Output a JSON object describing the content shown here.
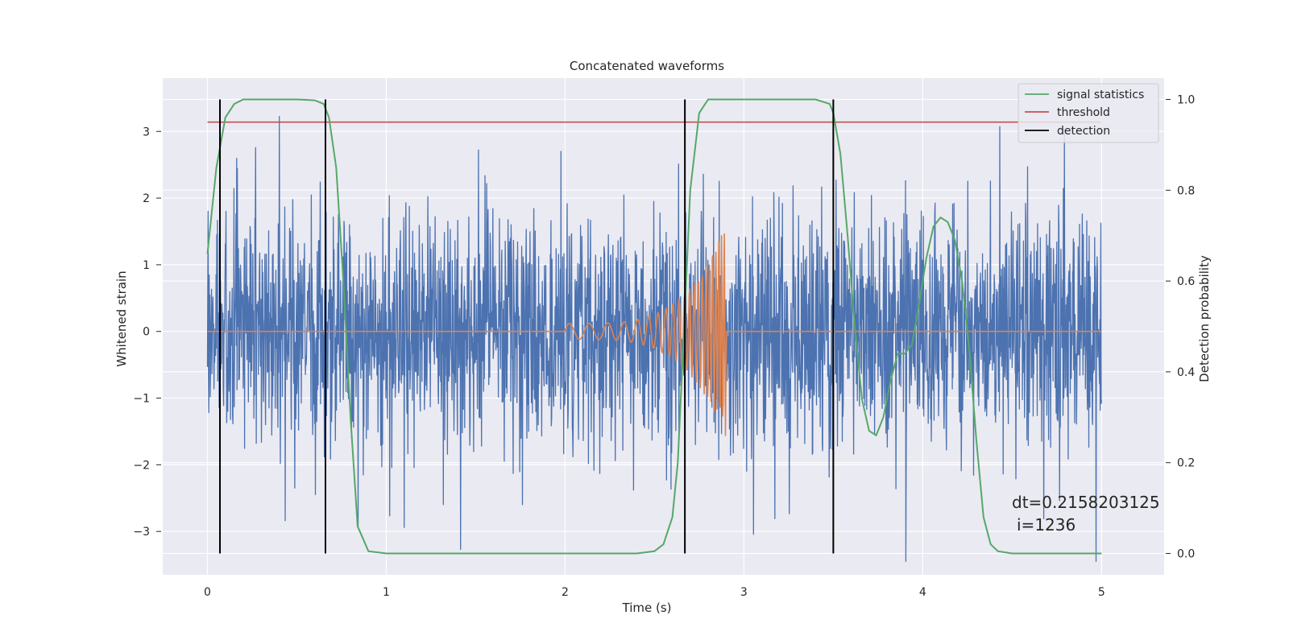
{
  "chart_data": {
    "type": "line",
    "title": "Concatenated waveforms",
    "xlabel": "Time (s)",
    "ylabel_left": "Whitened strain",
    "ylabel_right": "Detection probability",
    "xlim": [
      -0.25,
      5.35
    ],
    "ylim_left": [
      -3.65,
      3.8
    ],
    "ylim_right": [
      -0.047,
      1.047
    ],
    "x_ticks": [
      0,
      1,
      2,
      3,
      4,
      5
    ],
    "y_ticks_left": [
      -3,
      -2,
      -1,
      0,
      1,
      2,
      3
    ],
    "y_ticks_right": [
      0.0,
      0.2,
      0.4,
      0.6,
      0.8,
      1.0
    ],
    "grid": true,
    "legend_position": "top-right",
    "legend": [
      "signal statistics",
      "threshold",
      "detection"
    ],
    "series": [
      {
        "role": "noise",
        "axis": "left",
        "color": "#4c72b0",
        "x_range": [
          0,
          5
        ],
        "envelope_typical": [
          -1.4,
          1.9
        ],
        "envelope_extreme": [
          -3.45,
          3.5
        ]
      },
      {
        "role": "injected-waveform",
        "axis": "left",
        "color": "#dd8452",
        "x_range": [
          0,
          5
        ],
        "chirp_start": 2.0,
        "chirp_end": 2.9,
        "amplitude_start": 0.12,
        "amplitude_peak": 1.6
      },
      {
        "name": "signal statistics",
        "axis": "right",
        "color": "#55a868",
        "x": [
          0,
          0.05,
          0.1,
          0.15,
          0.2,
          0.3,
          0.5,
          0.6,
          0.65,
          0.68,
          0.72,
          0.76,
          0.8,
          0.84,
          0.9,
          1.0,
          2.0,
          2.4,
          2.5,
          2.55,
          2.6,
          2.63,
          2.66,
          2.7,
          2.75,
          2.8,
          3.0,
          3.4,
          3.48,
          3.5,
          3.54,
          3.58,
          3.62,
          3.66,
          3.7,
          3.74,
          3.78,
          3.82,
          3.86,
          3.9,
          3.94,
          3.98,
          4.02,
          4.06,
          4.1,
          4.14,
          4.18,
          4.22,
          4.26,
          4.3,
          4.34,
          4.38,
          4.42,
          4.5,
          4.8,
          5.0
        ],
        "y": [
          0.66,
          0.85,
          0.96,
          0.99,
          1.0,
          1.0,
          1.0,
          0.998,
          0.99,
          0.96,
          0.85,
          0.6,
          0.3,
          0.06,
          0.005,
          0.0,
          0.0,
          0.0,
          0.005,
          0.02,
          0.08,
          0.2,
          0.45,
          0.8,
          0.97,
          1.0,
          1.0,
          1.0,
          0.99,
          0.97,
          0.88,
          0.7,
          0.5,
          0.34,
          0.27,
          0.26,
          0.3,
          0.38,
          0.44,
          0.44,
          0.46,
          0.55,
          0.65,
          0.72,
          0.74,
          0.73,
          0.69,
          0.6,
          0.45,
          0.25,
          0.08,
          0.02,
          0.005,
          0.0,
          0.0,
          0.0
        ]
      },
      {
        "name": "threshold",
        "axis": "right",
        "color": "#c44e52",
        "x": [
          0,
          5
        ],
        "y": [
          0.95,
          0.95
        ]
      }
    ],
    "detections": {
      "name": "detection",
      "color": "#000000",
      "x": [
        0.07,
        0.66,
        2.67,
        3.5
      ],
      "ymin": 0.0,
      "ymax": 1.0
    },
    "annotations": [
      "dt=0.2158203125",
      "i=1236"
    ]
  },
  "style": {
    "axes_facecolor": "#eaeaf2",
    "grid_color": "#ffffff",
    "text_color": "#262626"
  }
}
